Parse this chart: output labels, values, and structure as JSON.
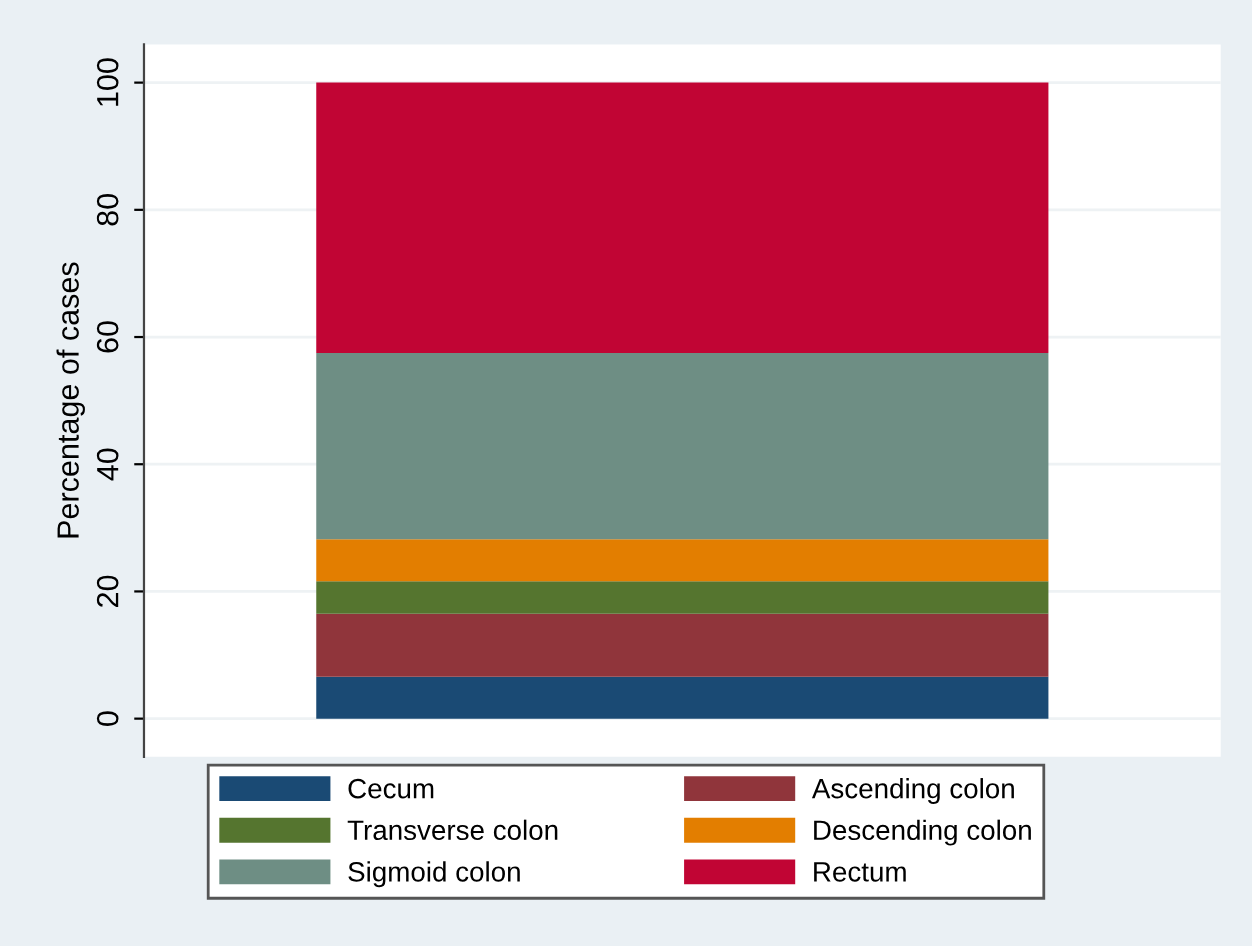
{
  "chart_data": {
    "type": "bar",
    "stacked": true,
    "ylabel": "Percentage of cases",
    "categories": [
      null
    ],
    "series": [
      {
        "name": "Cecum",
        "color": "#1a4a74",
        "values": [
          6.6
        ]
      },
      {
        "name": "Ascending colon",
        "color": "#90353b",
        "values": [
          9.9
        ]
      },
      {
        "name": "Transverse colon",
        "color": "#55752f",
        "values": [
          5.1
        ]
      },
      {
        "name": "Descending colon",
        "color": "#e37e00",
        "values": [
          6.6
        ]
      },
      {
        "name": "Sigmoid colon",
        "color": "#6e8e84",
        "values": [
          29.3
        ]
      },
      {
        "name": "Rectum",
        "color": "#c10534",
        "values": [
          42.5
        ]
      }
    ],
    "ylim": [
      -6,
      106
    ],
    "yticks": [
      0,
      20,
      40,
      60,
      80,
      100
    ],
    "grid": "y",
    "legend": "bottom"
  }
}
